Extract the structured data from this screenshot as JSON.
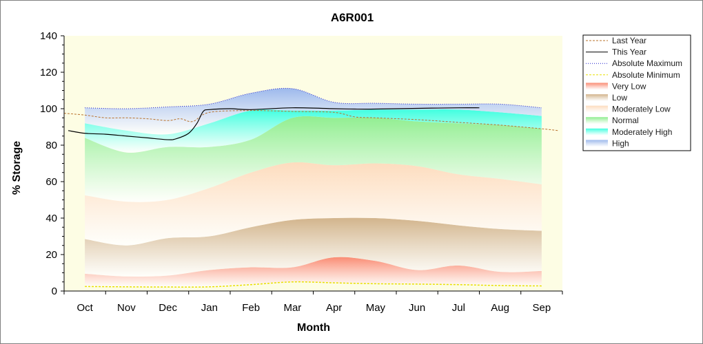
{
  "chart_data": {
    "type": "area",
    "title": "A6R001",
    "xlabel": "Month",
    "ylabel": "% Storage",
    "ylim": [
      0,
      140
    ],
    "yticks": [
      0,
      20,
      40,
      60,
      80,
      100,
      120,
      140
    ],
    "xlim": [
      -0.5,
      11.5
    ],
    "categories": [
      "Oct",
      "Nov",
      "Dec",
      "Jan",
      "Feb",
      "Mar",
      "Apr",
      "May",
      "Jun",
      "Jul",
      "Aug",
      "Sep"
    ],
    "grid": false,
    "legend_position": "right",
    "band_x": [
      0,
      1,
      2,
      3,
      4,
      5,
      6,
      7,
      8,
      9,
      10,
      11
    ],
    "bands": [
      {
        "name": "Very Low",
        "color": "#fa8c74",
        "lower": [
          2.5,
          2.3,
          2.2,
          2.3,
          3.5,
          5.0,
          4.5,
          4.0,
          3.8,
          3.5,
          3.0,
          2.8
        ],
        "upper": [
          9.5,
          8.0,
          8.5,
          11.5,
          13.0,
          13.0,
          18.5,
          16.5,
          11.5,
          14.0,
          10.5,
          11.0
        ]
      },
      {
        "name": "Low",
        "color": "#d2b48c",
        "lower": [
          9.5,
          8.0,
          8.5,
          11.5,
          13.0,
          13.0,
          18.5,
          16.5,
          11.5,
          14.0,
          10.5,
          11.0
        ],
        "upper": [
          28.5,
          25.0,
          29.0,
          30.0,
          35.0,
          39.0,
          40.0,
          40.0,
          38.5,
          36.0,
          34.0,
          33.0
        ]
      },
      {
        "name": "Moderately Low",
        "color": "#fddcbe",
        "lower": [
          28.5,
          25.0,
          29.0,
          30.0,
          35.0,
          39.0,
          40.0,
          40.0,
          38.5,
          36.0,
          34.0,
          33.0
        ],
        "upper": [
          52.5,
          49.0,
          50.0,
          56.5,
          65.0,
          70.5,
          69.0,
          70.0,
          68.5,
          64.0,
          61.5,
          58.5
        ]
      },
      {
        "name": "Normal",
        "color": "#90ee90",
        "lower": [
          52.5,
          49.0,
          50.0,
          56.5,
          65.0,
          70.5,
          69.0,
          70.0,
          68.5,
          64.0,
          61.5,
          58.5
        ],
        "upper": [
          84.0,
          76.0,
          79.0,
          79.0,
          83.0,
          95.0,
          95.0,
          95.0,
          93.0,
          92.0,
          91.0,
          89.0
        ]
      },
      {
        "name": "Moderately High",
        "color": "#40ffe0",
        "lower": [
          84.0,
          76.0,
          79.0,
          79.0,
          83.0,
          95.0,
          95.0,
          95.0,
          93.0,
          92.0,
          91.0,
          89.0
        ],
        "upper": [
          92.0,
          88.0,
          86.0,
          92.0,
          99.0,
          99.0,
          99.0,
          99.5,
          99.5,
          99.5,
          98.0,
          96.0
        ]
      },
      {
        "name": "High",
        "color": "#9db9ec",
        "lower": [
          92.0,
          88.0,
          86.0,
          92.0,
          99.0,
          99.0,
          99.0,
          99.5,
          99.5,
          99.5,
          98.0,
          96.0
        ],
        "upper": [
          100.5,
          100.0,
          101.0,
          102.5,
          108.5,
          111.0,
          103.5,
          103.0,
          102.5,
          102.5,
          102.5,
          100.5
        ]
      }
    ],
    "series": [
      {
        "name": "Last Year",
        "color": "#b8702a",
        "dash": "3,2",
        "width": 1,
        "x": [
          -0.5,
          0,
          0.5,
          1,
          1.5,
          2,
          2.3,
          2.6,
          3,
          4,
          5,
          6,
          6.5,
          7,
          8,
          9,
          10,
          11,
          11.4
        ],
        "y": [
          97.5,
          96.5,
          95.0,
          95.0,
          94.5,
          93.5,
          94.5,
          93.0,
          98.0,
          99.0,
          98.5,
          98.0,
          95.5,
          95.0,
          94.0,
          92.5,
          91.0,
          89.0,
          88.0
        ]
      },
      {
        "name": "This Year",
        "color": "#000000",
        "dash": "",
        "width": 1.2,
        "x": [
          -0.4,
          0,
          0.5,
          1,
          1.5,
          2,
          2.2,
          2.5,
          2.7,
          2.85,
          3,
          3.5,
          4,
          5,
          6,
          6.5,
          7,
          8,
          9,
          9.5
        ],
        "y": [
          88.0,
          86.5,
          86.0,
          85.0,
          84.0,
          83.0,
          83.5,
          86.5,
          92.0,
          98.5,
          99.5,
          100.0,
          99.5,
          100.5,
          100.0,
          99.8,
          99.8,
          100.2,
          100.5,
          100.5
        ]
      },
      {
        "name": "Absolute Maximum",
        "color": "#1a1acc",
        "dash": "1,2",
        "width": 1,
        "x": [
          0,
          1,
          2,
          3,
          4,
          5,
          6,
          7,
          8,
          9,
          10,
          11
        ],
        "y": [
          100.5,
          100.0,
          101.0,
          102.5,
          108.5,
          111.0,
          103.5,
          103.0,
          102.5,
          102.5,
          102.5,
          100.5
        ]
      },
      {
        "name": "Absolute Minimum",
        "color": "#e8e000",
        "dash": "3,2",
        "width": 1.5,
        "x": [
          0,
          1,
          2,
          3,
          4,
          5,
          6,
          7,
          8,
          9,
          10,
          11
        ],
        "y": [
          2.5,
          2.3,
          2.2,
          2.3,
          3.5,
          5.0,
          4.5,
          4.0,
          3.8,
          3.5,
          3.0,
          2.8
        ]
      }
    ],
    "legend": [
      {
        "label": "Last Year",
        "kind": "line",
        "color": "#b8702a",
        "dash": "3,2"
      },
      {
        "label": "This Year",
        "kind": "line",
        "color": "#000000",
        "dash": ""
      },
      {
        "label": "Absolute Maximum",
        "kind": "line",
        "color": "#1a1acc",
        "dash": "1,2"
      },
      {
        "label": "Absolute Minimum",
        "kind": "line",
        "color": "#e8e000",
        "dash": "3,2"
      },
      {
        "label": "Very Low",
        "kind": "area",
        "color": "#fa8c74"
      },
      {
        "label": "Low",
        "kind": "area",
        "color": "#d2b48c"
      },
      {
        "label": "Moderately Low",
        "kind": "area",
        "color": "#fddcbe"
      },
      {
        "label": "Normal",
        "kind": "area",
        "color": "#90ee90"
      },
      {
        "label": "Moderately High",
        "kind": "area",
        "color": "#40ffe0"
      },
      {
        "label": "High",
        "kind": "area",
        "color": "#9db9ec"
      }
    ],
    "plot_background": "#fdfde4"
  }
}
